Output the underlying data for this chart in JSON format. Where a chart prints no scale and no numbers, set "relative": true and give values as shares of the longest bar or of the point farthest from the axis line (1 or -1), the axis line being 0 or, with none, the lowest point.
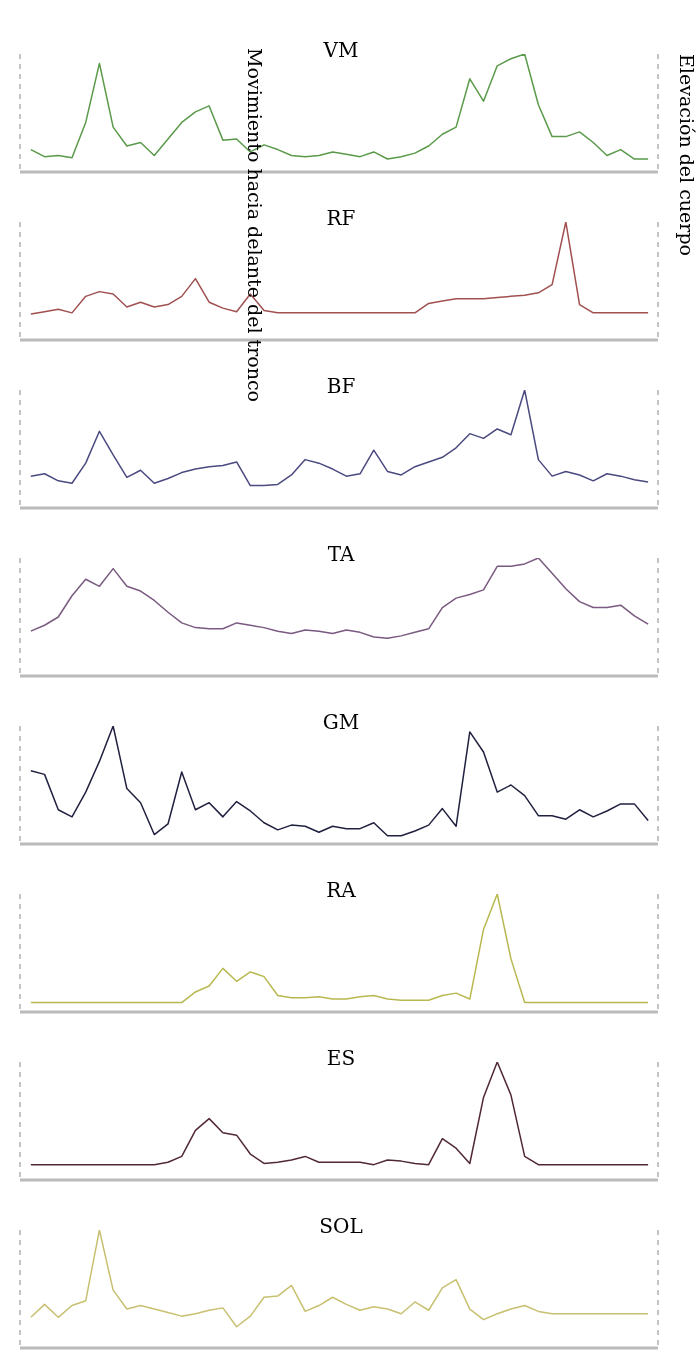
{
  "chart_data": [
    {
      "type": "line",
      "title": "VM",
      "relative": true,
      "categories": [
        null,
        null,
        null,
        null,
        null,
        null,
        null,
        null,
        null,
        null,
        null,
        null,
        null,
        null,
        null,
        null,
        null,
        null,
        null,
        null,
        null,
        null,
        null,
        null,
        null,
        null,
        null,
        null,
        null,
        null,
        null,
        null,
        null,
        null,
        null,
        null,
        null,
        null,
        null,
        null,
        null,
        null,
        null,
        null,
        null,
        null
      ],
      "tick_labels": false,
      "grid": "x",
      "annotations": [
        "Movimiento hacia delante del tronco",
        "Elevación del cuerpo"
      ],
      "series": [
        {
          "color": "#5a9a4a",
          "values": [
            0.19,
            0.13,
            0.14,
            0.12,
            0.42,
            0.92,
            0.38,
            0.22,
            0.25,
            0.14,
            0.28,
            0.42,
            0.51,
            0.56,
            0.27,
            0.28,
            0.17,
            0.23,
            0.19,
            0.14,
            0.13,
            0.14,
            0.17,
            0.15,
            0.13,
            0.17,
            0.11,
            0.13,
            0.16,
            0.22,
            0.32,
            0.38,
            0.79,
            0.6,
            0.9,
            0.96,
            1,
            0.57,
            0.3,
            0.3,
            0.34,
            0.25,
            0.14,
            0.19,
            0.11,
            0.11
          ]
        }
      ]
    },
    {
      "type": "line",
      "title": "RF",
      "relative": true,
      "categories": [
        null,
        null,
        null,
        null,
        null,
        null,
        null,
        null,
        null,
        null,
        null,
        null,
        null,
        null,
        null,
        null,
        null,
        null,
        null,
        null,
        null,
        null,
        null,
        null,
        null,
        null,
        null,
        null,
        null,
        null,
        null,
        null,
        null,
        null,
        null,
        null,
        null,
        null,
        null,
        null,
        null,
        null,
        null,
        null,
        null,
        null
      ],
      "tick_labels": false,
      "grid": "x",
      "series": [
        {
          "color": "#a05050",
          "values": [
            0.22,
            0.24,
            0.26,
            0.23,
            0.37,
            0.41,
            0.39,
            0.28,
            0.32,
            0.28,
            0.3,
            0.37,
            0.52,
            0.32,
            0.27,
            0.24,
            0.39,
            0.25,
            0.23,
            0.23,
            0.23,
            0.23,
            0.23,
            0.23,
            0.23,
            0.23,
            0.23,
            0.23,
            0.23,
            0.31,
            0.33,
            0.35,
            0.35,
            0.35,
            0.36,
            0.37,
            0.38,
            0.4,
            0.47,
            1,
            0.3,
            0.23,
            0.23,
            0.23,
            0.23,
            0.23
          ]
        }
      ]
    },
    {
      "type": "line",
      "title": "BF",
      "relative": true,
      "categories": [
        null,
        null,
        null,
        null,
        null,
        null,
        null,
        null,
        null,
        null,
        null,
        null,
        null,
        null,
        null,
        null,
        null,
        null,
        null,
        null,
        null,
        null,
        null,
        null,
        null,
        null,
        null,
        null,
        null,
        null,
        null,
        null,
        null,
        null,
        null,
        null,
        null,
        null,
        null,
        null,
        null,
        null,
        null,
        null,
        null,
        null
      ],
      "tick_labels": false,
      "grid": "x",
      "series": [
        {
          "color": "#4a4a80",
          "values": [
            0.27,
            0.29,
            0.23,
            0.21,
            0.38,
            0.65,
            0.45,
            0.26,
            0.32,
            0.21,
            0.25,
            0.3,
            0.33,
            0.35,
            0.36,
            0.39,
            0.19,
            0.19,
            0.2,
            0.28,
            0.41,
            0.38,
            0.33,
            0.27,
            0.29,
            0.49,
            0.31,
            0.28,
            0.35,
            0.39,
            0.43,
            0.51,
            0.63,
            0.59,
            0.67,
            0.62,
            1,
            0.41,
            0.27,
            0.31,
            0.28,
            0.23,
            0.29,
            0.27,
            0.24,
            0.22
          ]
        }
      ]
    },
    {
      "type": "line",
      "title": "TA",
      "relative": true,
      "categories": [
        null,
        null,
        null,
        null,
        null,
        null,
        null,
        null,
        null,
        null,
        null,
        null,
        null,
        null,
        null,
        null,
        null,
        null,
        null,
        null,
        null,
        null,
        null,
        null,
        null,
        null,
        null,
        null,
        null,
        null,
        null,
        null,
        null,
        null,
        null,
        null,
        null,
        null,
        null,
        null,
        null,
        null,
        null,
        null,
        null,
        null
      ],
      "tick_labels": false,
      "grid": "x",
      "series": [
        {
          "color": "#7a5a80",
          "values": [
            0.38,
            0.43,
            0.5,
            0.68,
            0.82,
            0.76,
            0.91,
            0.76,
            0.72,
            0.64,
            0.54,
            0.45,
            0.41,
            0.4,
            0.4,
            0.45,
            0.43,
            0.41,
            0.38,
            0.36,
            0.39,
            0.38,
            0.36,
            0.39,
            0.37,
            0.33,
            0.32,
            0.34,
            0.37,
            0.4,
            0.58,
            0.66,
            0.69,
            0.73,
            0.93,
            0.93,
            0.95,
            1,
            0.87,
            0.74,
            0.63,
            0.58,
            0.58,
            0.6,
            0.51,
            0.44
          ]
        }
      ]
    },
    {
      "type": "line",
      "title": "GM",
      "relative": true,
      "categories": [
        null,
        null,
        null,
        null,
        null,
        null,
        null,
        null,
        null,
        null,
        null,
        null,
        null,
        null,
        null,
        null,
        null,
        null,
        null,
        null,
        null,
        null,
        null,
        null,
        null,
        null,
        null,
        null,
        null,
        null,
        null,
        null,
        null,
        null,
        null,
        null,
        null,
        null,
        null,
        null,
        null,
        null,
        null,
        null,
        null,
        null
      ],
      "tick_labels": false,
      "grid": "x",
      "series": [
        {
          "color": "#202040",
          "values": [
            0.62,
            0.59,
            0.29,
            0.23,
            0.44,
            0.7,
            1,
            0.47,
            0.35,
            0.08,
            0.17,
            0.61,
            0.29,
            0.35,
            0.23,
            0.36,
            0.28,
            0.18,
            0.12,
            0.16,
            0.15,
            0.1,
            0.15,
            0.13,
            0.13,
            0.18,
            0.07,
            0.07,
            0.11,
            0.16,
            0.3,
            0.15,
            0.95,
            0.78,
            0.44,
            0.5,
            0.41,
            0.24,
            0.24,
            0.21,
            0.29,
            0.23,
            0.28,
            0.34,
            0.34,
            0.2
          ]
        }
      ]
    },
    {
      "type": "line",
      "title": "RA",
      "relative": true,
      "categories": [
        null,
        null,
        null,
        null,
        null,
        null,
        null,
        null,
        null,
        null,
        null,
        null,
        null,
        null,
        null,
        null,
        null,
        null,
        null,
        null,
        null,
        null,
        null,
        null,
        null,
        null,
        null,
        null,
        null,
        null,
        null,
        null,
        null,
        null,
        null,
        null,
        null,
        null,
        null,
        null,
        null,
        null,
        null,
        null,
        null,
        null
      ],
      "tick_labels": false,
      "grid": "x",
      "series": [
        {
          "color": "#b8b850",
          "values": [
            0.08,
            0.08,
            0.08,
            0.08,
            0.08,
            0.08,
            0.08,
            0.08,
            0.08,
            0.08,
            0.08,
            0.08,
            0.17,
            0.22,
            0.37,
            0.26,
            0.34,
            0.3,
            0.14,
            0.12,
            0.12,
            0.13,
            0.11,
            0.11,
            0.13,
            0.14,
            0.11,
            0.1,
            0.1,
            0.1,
            0.14,
            0.16,
            0.11,
            0.7,
            1,
            0.45,
            0.08,
            0.08,
            0.08,
            0.08,
            0.08,
            0.08,
            0.08,
            0.08,
            0.08,
            0.08
          ]
        }
      ]
    },
    {
      "type": "line",
      "title": "ES",
      "relative": true,
      "categories": [
        null,
        null,
        null,
        null,
        null,
        null,
        null,
        null,
        null,
        null,
        null,
        null,
        null,
        null,
        null,
        null,
        null,
        null,
        null,
        null,
        null,
        null,
        null,
        null,
        null,
        null,
        null,
        null,
        null,
        null,
        null,
        null,
        null,
        null,
        null,
        null,
        null,
        null,
        null,
        null,
        null,
        null,
        null,
        null,
        null,
        null
      ],
      "tick_labels": false,
      "grid": "x",
      "series": [
        {
          "color": "#502838",
          "values": [
            0.13,
            0.13,
            0.13,
            0.13,
            0.13,
            0.13,
            0.13,
            0.13,
            0.13,
            0.13,
            0.15,
            0.2,
            0.42,
            0.52,
            0.4,
            0.38,
            0.22,
            0.14,
            0.15,
            0.17,
            0.2,
            0.15,
            0.15,
            0.15,
            0.15,
            0.13,
            0.17,
            0.16,
            0.14,
            0.13,
            0.35,
            0.27,
            0.14,
            0.7,
            1,
            0.72,
            0.2,
            0.13,
            0.13,
            0.13,
            0.13,
            0.13,
            0.13,
            0.13,
            0.13,
            0.13
          ]
        }
      ]
    },
    {
      "type": "line",
      "title": "SOL",
      "relative": true,
      "categories": [
        null,
        null,
        null,
        null,
        null,
        null,
        null,
        null,
        null,
        null,
        null,
        null,
        null,
        null,
        null,
        null,
        null,
        null,
        null,
        null,
        null,
        null,
        null,
        null,
        null,
        null,
        null,
        null,
        null,
        null,
        null,
        null,
        null,
        null,
        null,
        null,
        null,
        null,
        null,
        null,
        null,
        null,
        null,
        null,
        null,
        null
      ],
      "tick_labels": false,
      "grid": "x",
      "series": [
        {
          "color": "#c8c070",
          "values": [
            0.26,
            0.37,
            0.26,
            0.36,
            0.4,
            1,
            0.49,
            0.33,
            0.36,
            0.33,
            0.3,
            0.27,
            0.29,
            0.32,
            0.34,
            0.18,
            0.27,
            0.43,
            0.44,
            0.53,
            0.31,
            0.36,
            0.43,
            0.37,
            0.32,
            0.35,
            0.33,
            0.29,
            0.39,
            0.32,
            0.51,
            0.58,
            0.33,
            0.24,
            0.29,
            0.33,
            0.36,
            0.31,
            0.29,
            0.29,
            0.29,
            0.29,
            0.29,
            0.29,
            0.29,
            0.29
          ]
        }
      ]
    }
  ]
}
